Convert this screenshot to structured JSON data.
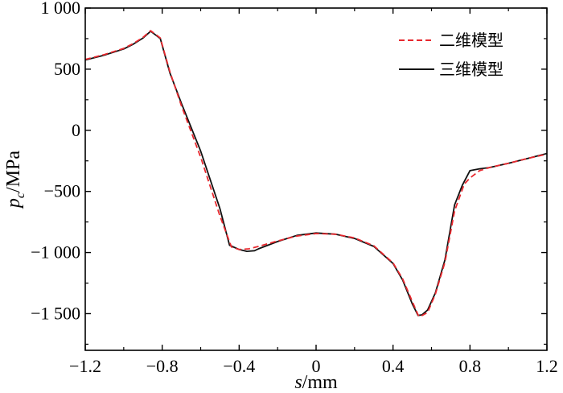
{
  "chart_data": {
    "type": "line",
    "xlabel": {
      "var": "s",
      "unit": "/mm"
    },
    "ylabel": {
      "var": "p",
      "sub": "c",
      "unit": "/MPa"
    },
    "xlim": [
      -1.2,
      1.2
    ],
    "ylim": [
      -1800,
      1000
    ],
    "x_ticks": [
      -1.2,
      -0.8,
      -0.4,
      0,
      0.4,
      0.8,
      1.2
    ],
    "x_tick_labels": [
      "−1.2",
      "−0.8",
      "−0.4",
      "0",
      "0.4",
      "0.8",
      "1.2"
    ],
    "y_ticks": [
      -1500,
      -1000,
      -500,
      0,
      500,
      1000
    ],
    "y_tick_labels": [
      "−1 500",
      "−1 000",
      "−500",
      "0",
      "500",
      "1 000"
    ],
    "grid": false,
    "legend_position": "top-right",
    "series": [
      {
        "name": "二维模型",
        "color": "#e8282e",
        "dash": "dashed",
        "points": [
          [
            -1.2,
            580
          ],
          [
            -1.1,
            620
          ],
          [
            -1.0,
            670
          ],
          [
            -0.95,
            710
          ],
          [
            -0.9,
            760
          ],
          [
            -0.86,
            815
          ],
          [
            -0.83,
            780
          ],
          [
            -0.81,
            755
          ],
          [
            -0.76,
            480
          ],
          [
            -0.7,
            200
          ],
          [
            -0.6,
            -220
          ],
          [
            -0.5,
            -700
          ],
          [
            -0.44,
            -955
          ],
          [
            -0.4,
            -975
          ],
          [
            -0.35,
            -970
          ],
          [
            -0.3,
            -950
          ],
          [
            -0.2,
            -905
          ],
          [
            -0.1,
            -865
          ],
          [
            0.0,
            -845
          ],
          [
            0.1,
            -850
          ],
          [
            0.2,
            -880
          ],
          [
            0.3,
            -945
          ],
          [
            0.4,
            -1085
          ],
          [
            0.45,
            -1215
          ],
          [
            0.5,
            -1400
          ],
          [
            0.53,
            -1510
          ],
          [
            0.54,
            -1525
          ],
          [
            0.58,
            -1490
          ],
          [
            0.62,
            -1340
          ],
          [
            0.67,
            -1080
          ],
          [
            0.72,
            -660
          ],
          [
            0.77,
            -440
          ],
          [
            0.8,
            -390
          ],
          [
            0.85,
            -330
          ],
          [
            0.9,
            -305
          ],
          [
            1.0,
            -270
          ],
          [
            1.1,
            -230
          ],
          [
            1.2,
            -195
          ]
        ]
      },
      {
        "name": "三维模型",
        "color": "#111111",
        "dash": "solid",
        "points": [
          [
            -1.2,
            575
          ],
          [
            -1.1,
            615
          ],
          [
            -1.0,
            665
          ],
          [
            -0.95,
            705
          ],
          [
            -0.9,
            755
          ],
          [
            -0.86,
            810
          ],
          [
            -0.83,
            775
          ],
          [
            -0.81,
            750
          ],
          [
            -0.76,
            470
          ],
          [
            -0.7,
            220
          ],
          [
            -0.6,
            -170
          ],
          [
            -0.5,
            -640
          ],
          [
            -0.45,
            -940
          ],
          [
            -0.4,
            -975
          ],
          [
            -0.36,
            -990
          ],
          [
            -0.32,
            -985
          ],
          [
            -0.3,
            -970
          ],
          [
            -0.2,
            -910
          ],
          [
            -0.1,
            -860
          ],
          [
            0.0,
            -840
          ],
          [
            0.1,
            -850
          ],
          [
            0.2,
            -885
          ],
          [
            0.3,
            -950
          ],
          [
            0.4,
            -1090
          ],
          [
            0.45,
            -1225
          ],
          [
            0.5,
            -1420
          ],
          [
            0.53,
            -1515
          ],
          [
            0.55,
            -1510
          ],
          [
            0.58,
            -1470
          ],
          [
            0.62,
            -1330
          ],
          [
            0.67,
            -1060
          ],
          [
            0.72,
            -610
          ],
          [
            0.76,
            -450
          ],
          [
            0.8,
            -330
          ],
          [
            0.85,
            -315
          ],
          [
            0.9,
            -305
          ],
          [
            1.0,
            -270
          ],
          [
            1.1,
            -230
          ],
          [
            1.2,
            -190
          ]
        ]
      }
    ]
  }
}
